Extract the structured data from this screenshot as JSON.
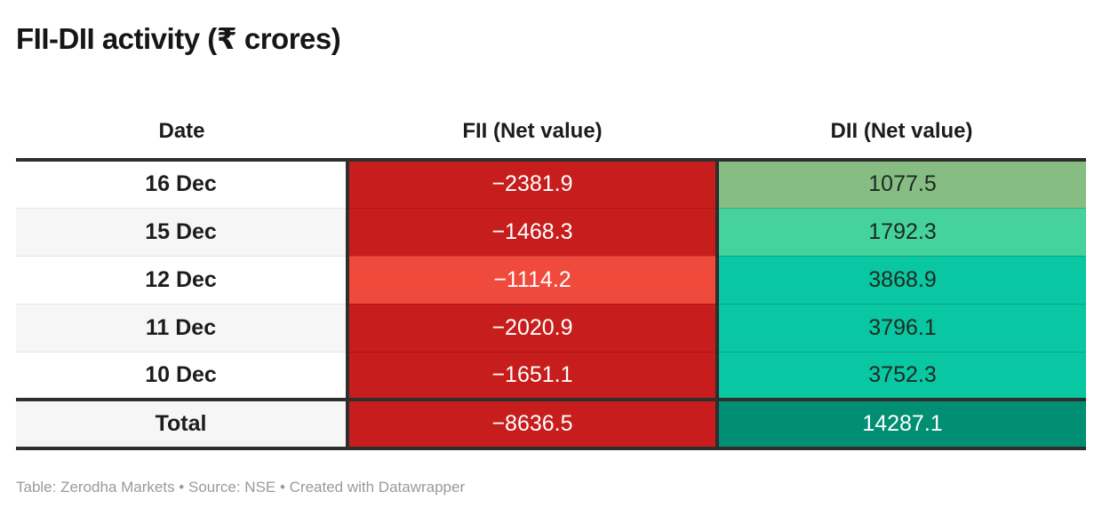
{
  "title": "FII-DII activity (₹ crores)",
  "footer": {
    "text": "Table: Zerodha Markets • Source: NSE • Created with Datawrapper"
  },
  "colors": {
    "border": "#2e2e2e",
    "zebra_gray": "#f6f6f6",
    "white": "#ffffff",
    "dark_red": "#c71e1d",
    "light_red": "#ef4a3c",
    "sage_green": "#87bd83",
    "mint_green": "#45d29b",
    "teal_green": "#09c7a2",
    "dark_teal": "#008f72",
    "footer_gray": "#9a9a9a"
  },
  "table": {
    "columns": [
      {
        "label": "Date"
      },
      {
        "label": "FII (Net value)"
      },
      {
        "label": "DII (Net value)"
      }
    ],
    "rows": [
      {
        "date": "16 Dec",
        "fii": "−2381.9",
        "dii": "1077.5",
        "date_bg": "#ffffff",
        "fii_bg": "#c71e1d",
        "fii_fg": "#ffffff",
        "dii_bg": "#87bd83",
        "dii_fg": "#1d2a22"
      },
      {
        "date": "15 Dec",
        "fii": "−1468.3",
        "dii": "1792.3",
        "date_bg": "#f6f6f6",
        "fii_bg": "#c71e1d",
        "fii_fg": "#ffffff",
        "dii_bg": "#45d29b",
        "dii_fg": "#1d2a22"
      },
      {
        "date": "12 Dec",
        "fii": "−1114.2",
        "dii": "3868.9",
        "date_bg": "#ffffff",
        "fii_bg": "#ef4a3c",
        "fii_fg": "#ffffff",
        "dii_bg": "#09c7a2",
        "dii_fg": "#1d2a22"
      },
      {
        "date": "11 Dec",
        "fii": "−2020.9",
        "dii": "3796.1",
        "date_bg": "#f6f6f6",
        "fii_bg": "#c71e1d",
        "fii_fg": "#ffffff",
        "dii_bg": "#09c7a2",
        "dii_fg": "#1d2a22"
      },
      {
        "date": "10 Dec",
        "fii": "−1651.1",
        "dii": "3752.3",
        "date_bg": "#ffffff",
        "fii_bg": "#c71e1d",
        "fii_fg": "#ffffff",
        "dii_bg": "#09c7a2",
        "dii_fg": "#1d2a22"
      }
    ],
    "total_row": {
      "date": "Total",
      "fii": "−8636.5",
      "dii": "14287.1",
      "date_bg": "#f6f6f6",
      "fii_bg": "#c71e1d",
      "fii_fg": "#ffffff",
      "dii_bg": "#008f72",
      "dii_fg": "#ffffff"
    }
  },
  "chart_data": {
    "type": "table",
    "title": "FII-DII activity (₹ crores)",
    "columns": [
      "Date",
      "FII (Net value)",
      "DII (Net value)"
    ],
    "rows": [
      [
        "16 Dec",
        -2381.9,
        1077.5
      ],
      [
        "15 Dec",
        -1468.3,
        1792.3
      ],
      [
        "12 Dec",
        -1114.2,
        3868.9
      ],
      [
        "11 Dec",
        -2020.9,
        3796.1
      ],
      [
        "10 Dec",
        -1651.1,
        3752.3
      ],
      [
        "Total",
        -8636.5,
        14287.1
      ]
    ],
    "byline": "Zerodha Markets",
    "source": "NSE",
    "tool": "Datawrapper",
    "color_encoding": "FII negative values shaded red (lighter = closer to zero); DII positive values shaded green/teal (darker = larger); totals in saturated red / dark teal"
  }
}
